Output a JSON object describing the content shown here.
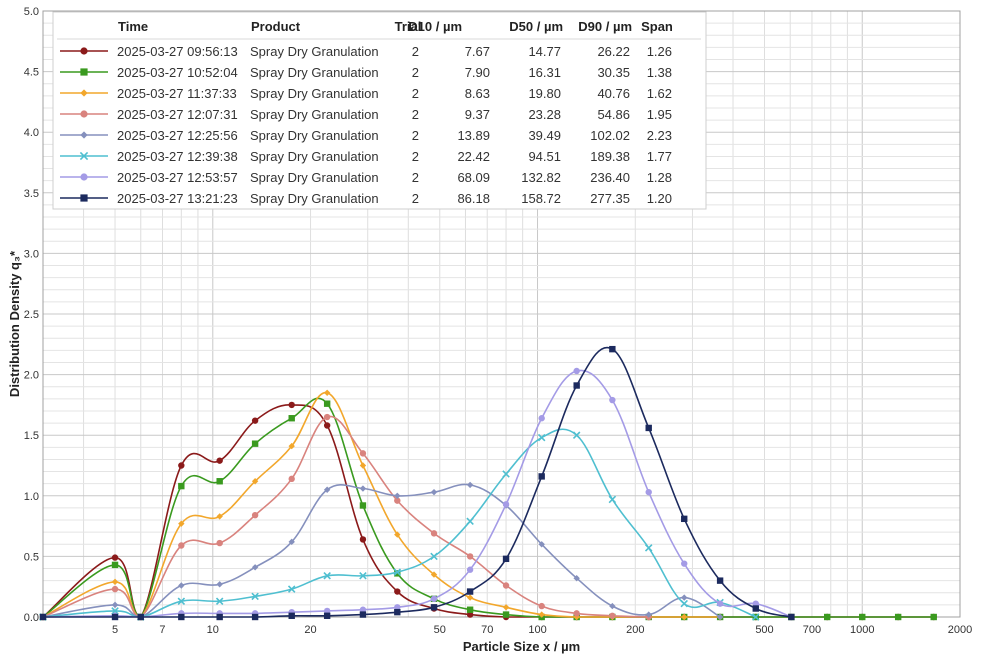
{
  "chart_data": {
    "type": "line",
    "xlabel": "Particle Size x / µm",
    "ylabel": "Distribution Density q₃*",
    "x_scale": "log",
    "xlim": [
      3,
      2000
    ],
    "ylim": [
      0,
      5
    ],
    "grid": true,
    "legend_position": "top-left",
    "x_ticks": [
      5,
      7,
      10,
      20,
      50,
      70,
      100,
      200,
      500,
      700,
      1000,
      2000
    ],
    "x_tick_labels": [
      "5",
      "7",
      "10",
      "20",
      "50",
      "70",
      "100",
      "200",
      "500",
      "700",
      "1000",
      "2000"
    ],
    "y_ticks": [
      0.0,
      0.5,
      1.0,
      1.5,
      2.0,
      2.5,
      3.0,
      3.5,
      4.0,
      4.5,
      5.0
    ],
    "y_tick_labels": [
      "0.0",
      "0.5",
      "1.0",
      "1.5",
      "2.0",
      "2.5",
      "3.0",
      "3.5",
      "4.0",
      "4.5",
      "5.0"
    ],
    "legend_headers": [
      "Time",
      "Product",
      "Trial",
      "D10 / µm",
      "D50 / µm",
      "D90 / µm",
      "Span"
    ],
    "series": [
      {
        "name": "2025-03-27 09:56:13",
        "product": "Spray Dry Granulation",
        "trial": "2",
        "d10": "7.67",
        "d50": "14.77",
        "d90": "26.22",
        "span": "1.26",
        "color": "#8b1a1a",
        "marker": "circle",
        "x": [
          3,
          5,
          6,
          8,
          10.5,
          13.5,
          17.5,
          22.5,
          29,
          37,
          48,
          62,
          80,
          103,
          132,
          170,
          220,
          283,
          365,
          470,
          605,
          780,
          1000,
          1290,
          1660
        ],
        "y": [
          0,
          0.49,
          0,
          1.25,
          1.29,
          1.62,
          1.75,
          1.58,
          0.64,
          0.21,
          0.07,
          0.02,
          0,
          0,
          0,
          0,
          0,
          0,
          0,
          0,
          0,
          0,
          0,
          0,
          0
        ]
      },
      {
        "name": "2025-03-27 10:52:04",
        "product": "Spray Dry Granulation",
        "trial": "2",
        "d10": "7.90",
        "d50": "16.31",
        "d90": "30.35",
        "span": "1.38",
        "color": "#3a9a1f",
        "marker": "square",
        "x": [
          3,
          5,
          6,
          8,
          10.5,
          13.5,
          17.5,
          22.5,
          29,
          37,
          48,
          62,
          80,
          103,
          132,
          170,
          220,
          283,
          365,
          470,
          605,
          780,
          1000,
          1290,
          1660
        ],
        "y": [
          0,
          0.43,
          0,
          1.08,
          1.12,
          1.43,
          1.64,
          1.76,
          0.92,
          0.36,
          0.15,
          0.06,
          0.02,
          0,
          0,
          0,
          0,
          0,
          0,
          0,
          0,
          0,
          0,
          0,
          0
        ]
      },
      {
        "name": "2025-03-27 11:37:33",
        "product": "Spray Dry Granulation",
        "trial": "2",
        "d10": "8.63",
        "d50": "19.80",
        "d90": "40.76",
        "span": "1.62",
        "color": "#f2a72c",
        "marker": "diamond",
        "x": [
          3,
          5,
          6,
          8,
          10.5,
          13.5,
          17.5,
          22.5,
          29,
          37,
          48,
          62,
          80,
          103,
          132,
          170,
          220,
          283,
          365
        ],
        "y": [
          0,
          0.29,
          0,
          0.77,
          0.83,
          1.12,
          1.41,
          1.85,
          1.25,
          0.68,
          0.35,
          0.16,
          0.08,
          0.02,
          0,
          0,
          0,
          0,
          0
        ]
      },
      {
        "name": "2025-03-27 12:07:31",
        "product": "Spray Dry Granulation",
        "trial": "2",
        "d10": "9.37",
        "d50": "23.28",
        "d90": "54.86",
        "span": "1.95",
        "color": "#d9837e",
        "marker": "circle",
        "x": [
          3,
          5,
          6,
          8,
          10.5,
          13.5,
          17.5,
          22.5,
          29,
          37,
          48,
          62,
          80,
          103,
          132,
          170,
          220
        ],
        "y": [
          0,
          0.23,
          0,
          0.59,
          0.61,
          0.84,
          1.14,
          1.65,
          1.35,
          0.96,
          0.69,
          0.5,
          0.26,
          0.09,
          0.03,
          0.01,
          0
        ]
      },
      {
        "name": "2025-03-27 12:25:56",
        "product": "Spray Dry Granulation",
        "trial": "2",
        "d10": "13.89",
        "d50": "39.49",
        "d90": "102.02",
        "span": "2.23",
        "color": "#8590bd",
        "marker": "diamond",
        "x": [
          3,
          5,
          6,
          8,
          10.5,
          13.5,
          17.5,
          22.5,
          29,
          37,
          48,
          62,
          80,
          103,
          132,
          170,
          220,
          283,
          365
        ],
        "y": [
          0,
          0.1,
          0,
          0.26,
          0.27,
          0.41,
          0.62,
          1.05,
          1.06,
          1.0,
          1.03,
          1.09,
          0.92,
          0.6,
          0.32,
          0.09,
          0.02,
          0.16,
          0
        ]
      },
      {
        "name": "2025-03-27 12:39:38",
        "product": "Spray Dry Granulation",
        "trial": "2",
        "d10": "22.42",
        "d50": "94.51",
        "d90": "189.38",
        "span": "1.77",
        "color": "#4fbfd0",
        "marker": "x",
        "x": [
          3,
          5,
          6,
          8,
          10.5,
          13.5,
          17.5,
          22.5,
          29,
          37,
          48,
          62,
          80,
          103,
          132,
          170,
          220,
          283,
          365,
          470
        ],
        "y": [
          0,
          0.05,
          0,
          0.13,
          0.13,
          0.17,
          0.23,
          0.34,
          0.34,
          0.37,
          0.5,
          0.79,
          1.18,
          1.48,
          1.5,
          0.97,
          0.57,
          0.11,
          0.12,
          0
        ]
      },
      {
        "name": "2025-03-27 12:53:57",
        "product": "Spray Dry Granulation",
        "trial": "2",
        "d10": "68.09",
        "d50": "132.82",
        "d90": "236.40",
        "span": "1.28",
        "color": "#a49be6",
        "marker": "circle",
        "x": [
          3,
          5,
          6,
          8,
          10.5,
          13.5,
          17.5,
          22.5,
          29,
          37,
          48,
          62,
          80,
          103,
          132,
          170,
          220,
          283,
          365,
          470,
          605
        ],
        "y": [
          0,
          0.01,
          0,
          0.03,
          0.03,
          0.03,
          0.04,
          0.05,
          0.06,
          0.08,
          0.15,
          0.39,
          0.93,
          1.64,
          2.03,
          1.79,
          1.03,
          0.44,
          0.11,
          0.11,
          0
        ]
      },
      {
        "name": "2025-03-27 13:21:23",
        "product": "Spray Dry Granulation",
        "trial": "2",
        "d10": "86.18",
        "d50": "158.72",
        "d90": "277.35",
        "span": "1.20",
        "color": "#1c2a5e",
        "marker": "square",
        "x": [
          3,
          5,
          6,
          8,
          10.5,
          13.5,
          17.5,
          22.5,
          29,
          37,
          48,
          62,
          80,
          103,
          132,
          170,
          220,
          283,
          365,
          470,
          605
        ],
        "y": [
          0,
          0,
          0,
          0,
          0,
          0,
          0.01,
          0.01,
          0.02,
          0.04,
          0.08,
          0.21,
          0.48,
          1.16,
          1.91,
          2.21,
          1.56,
          0.81,
          0.3,
          0.07,
          0
        ]
      }
    ]
  }
}
